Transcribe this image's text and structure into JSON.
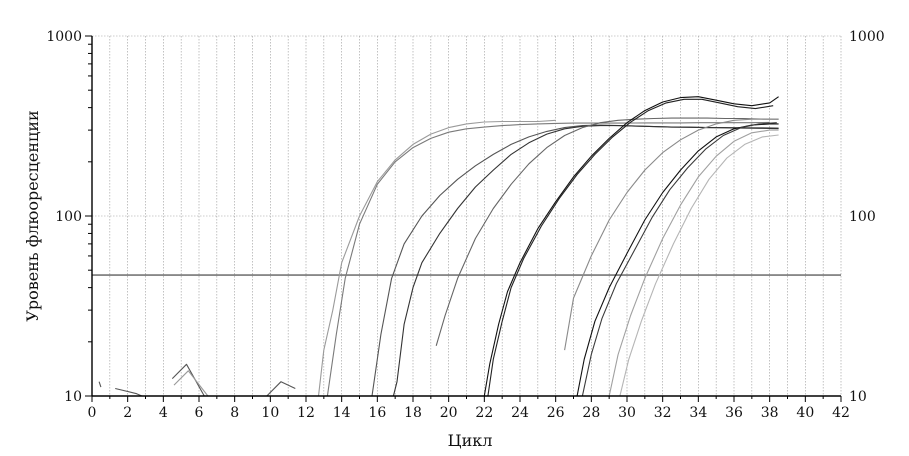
{
  "chart_data": {
    "type": "line",
    "title": "",
    "xlabel": "Цикл",
    "ylabel": "Уровень флюоресценции",
    "xlim": [
      0,
      42
    ],
    "ylim": [
      10,
      1000
    ],
    "y_scale": "log",
    "x_ticks": [
      "0",
      "2",
      "4",
      "6",
      "8",
      "10",
      "12",
      "14",
      "16",
      "18",
      "20",
      "22",
      "24",
      "26",
      "28",
      "30",
      "32",
      "34",
      "36",
      "38",
      "40",
      "42"
    ],
    "y_ticks_left": [
      "10",
      "100",
      "1000"
    ],
    "y_ticks_right": [
      "10",
      "100",
      "1000"
    ],
    "grid": true,
    "legend": "none",
    "threshold": 47,
    "series": [
      {
        "color": "#9a9a9a",
        "x": [
          12.7,
          13,
          13.5,
          14,
          15,
          16,
          17,
          18,
          19,
          20,
          21,
          22,
          23,
          24,
          25,
          26
        ],
        "values": [
          10,
          18,
          30,
          55,
          100,
          155,
          205,
          250,
          285,
          310,
          325,
          333,
          335,
          335,
          335,
          340
        ]
      },
      {
        "color": "#7a7a7a",
        "x": [
          13.2,
          13.7,
          14.2,
          15,
          16,
          17,
          18,
          19,
          20,
          21,
          22,
          23,
          24,
          25,
          26,
          27,
          28,
          29,
          30,
          31,
          32,
          33,
          34,
          35,
          36,
          37,
          38
        ],
        "values": [
          10,
          22,
          45,
          90,
          150,
          200,
          240,
          270,
          292,
          305,
          312,
          318,
          322,
          325,
          327,
          328,
          328,
          328,
          328,
          329,
          329,
          329,
          330,
          330,
          330,
          330,
          331
        ]
      },
      {
        "color": "#555555",
        "x": [
          15.7,
          16.2,
          16.8,
          17.5,
          18.5,
          19.5,
          20.5,
          21.5,
          22.5,
          23.5,
          24.5,
          25.5,
          26.5,
          27.5,
          28.5,
          29.5,
          30.5,
          31.5,
          32.5,
          33.5,
          34.5,
          35.5,
          36.5,
          37.5,
          38.5
        ],
        "values": [
          10,
          22,
          45,
          70,
          100,
          130,
          160,
          190,
          220,
          250,
          275,
          295,
          310,
          318,
          320,
          318,
          316,
          314,
          312,
          312,
          310,
          310,
          309,
          309,
          308
        ]
      },
      {
        "color": "#333333",
        "x": [
          16.9,
          17.1,
          17.5,
          18,
          18.5,
          19.5,
          20.5,
          21.5,
          22.5,
          23.5,
          24.5,
          25.5,
          26.5,
          27.5,
          28.5,
          29.5,
          30.5,
          31.5,
          32.5,
          33.5,
          34.5,
          35.5,
          36.5,
          37.5,
          38.5
        ],
        "values": [
          10,
          12,
          25,
          40,
          55,
          80,
          110,
          145,
          180,
          220,
          255,
          285,
          305,
          315,
          318,
          318,
          316,
          314,
          312,
          311,
          310,
          309,
          308,
          307,
          306
        ]
      },
      {
        "color": "#666666",
        "x": [
          19.3,
          19.8,
          20.5,
          21.5,
          22.5,
          23.5,
          24.5,
          25.5,
          26.5,
          27.5,
          28.5,
          29.5,
          30.5,
          31.5,
          32.5,
          33.5,
          34.5,
          35.5,
          36.5,
          37.5,
          38.5
        ],
        "values": [
          19,
          28,
          45,
          75,
          110,
          150,
          195,
          240,
          280,
          310,
          330,
          340,
          345,
          348,
          350,
          350,
          350,
          348,
          348,
          346,
          345
        ]
      },
      {
        "color": "#111111",
        "x": [
          22,
          22.3,
          22.8,
          23.3,
          24,
          25,
          26,
          27,
          28,
          29,
          30,
          31,
          32,
          33,
          34,
          35,
          36,
          37,
          38,
          38.5
        ],
        "values": [
          10,
          15,
          25,
          38,
          55,
          85,
          120,
          165,
          215,
          270,
          330,
          385,
          430,
          455,
          460,
          440,
          420,
          410,
          425,
          460
        ]
      },
      {
        "color": "#222222",
        "x": [
          22.2,
          22.5,
          23,
          23.5,
          24.2,
          25.2,
          26.2,
          27.2,
          28.2,
          29.2,
          30.2,
          31.2,
          32.2,
          33.2,
          34.2,
          35.2,
          36.2,
          37.2,
          38.2
        ],
        "values": [
          10,
          16,
          26,
          40,
          58,
          88,
          125,
          170,
          220,
          275,
          332,
          385,
          425,
          445,
          445,
          425,
          405,
          395,
          410
        ]
      },
      {
        "color": "#8a8a8a",
        "x": [
          26.5,
          27,
          28,
          29,
          30,
          31,
          32,
          33,
          34,
          35,
          36,
          37,
          38,
          38.5
        ],
        "values": [
          18,
          35,
          60,
          95,
          135,
          180,
          225,
          265,
          300,
          325,
          340,
          345,
          345,
          345
        ]
      },
      {
        "color": "#101010",
        "x": [
          27.2,
          27.6,
          28.2,
          29,
          30,
          31,
          32,
          33,
          34,
          35,
          36,
          37,
          38,
          38.5
        ],
        "values": [
          10,
          16,
          26,
          40,
          62,
          95,
          135,
          180,
          230,
          275,
          305,
          320,
          325,
          325
        ]
      },
      {
        "color": "#3a3a3a",
        "x": [
          27.5,
          28,
          28.6,
          29.4,
          30.4,
          31.4,
          32.4,
          33.4,
          34.4,
          35.4,
          36.4,
          37.4,
          38.4
        ],
        "values": [
          10,
          17,
          27,
          42,
          64,
          98,
          140,
          185,
          235,
          280,
          310,
          325,
          330
        ]
      },
      {
        "color": "#a0a0a0",
        "x": [
          29,
          29.5,
          30.2,
          31,
          32,
          33,
          34,
          35,
          36,
          37,
          38,
          38.5
        ],
        "values": [
          10,
          17,
          28,
          45,
          75,
          115,
          165,
          215,
          260,
          290,
          300,
          300
        ]
      },
      {
        "color": "#b5b5b5",
        "x": [
          29.6,
          30.1,
          30.8,
          31.6,
          32.6,
          33.6,
          34.6,
          35.6,
          36.6,
          37.6,
          38.5
        ],
        "values": [
          10,
          16,
          26,
          42,
          70,
          110,
          160,
          210,
          250,
          275,
          282
        ]
      },
      {
        "color": "#555555",
        "x": [
          4.5,
          5.3,
          6.3
        ],
        "values": [
          12.5,
          15,
          10
        ]
      },
      {
        "color": "#999999",
        "x": [
          4.6,
          5.4,
          6.5
        ],
        "values": [
          11.5,
          13.8,
          10
        ]
      },
      {
        "color": "#555555",
        "x": [
          9.8,
          10.6,
          11.4
        ],
        "values": [
          10,
          12,
          11
        ]
      },
      {
        "color": "#555555",
        "x": [
          0.4,
          0.5
        ],
        "values": [
          12,
          11.2
        ]
      },
      {
        "color": "#555555",
        "x": [
          1.3,
          2.5,
          2.8
        ],
        "values": [
          11,
          10.3,
          10
        ]
      }
    ]
  }
}
